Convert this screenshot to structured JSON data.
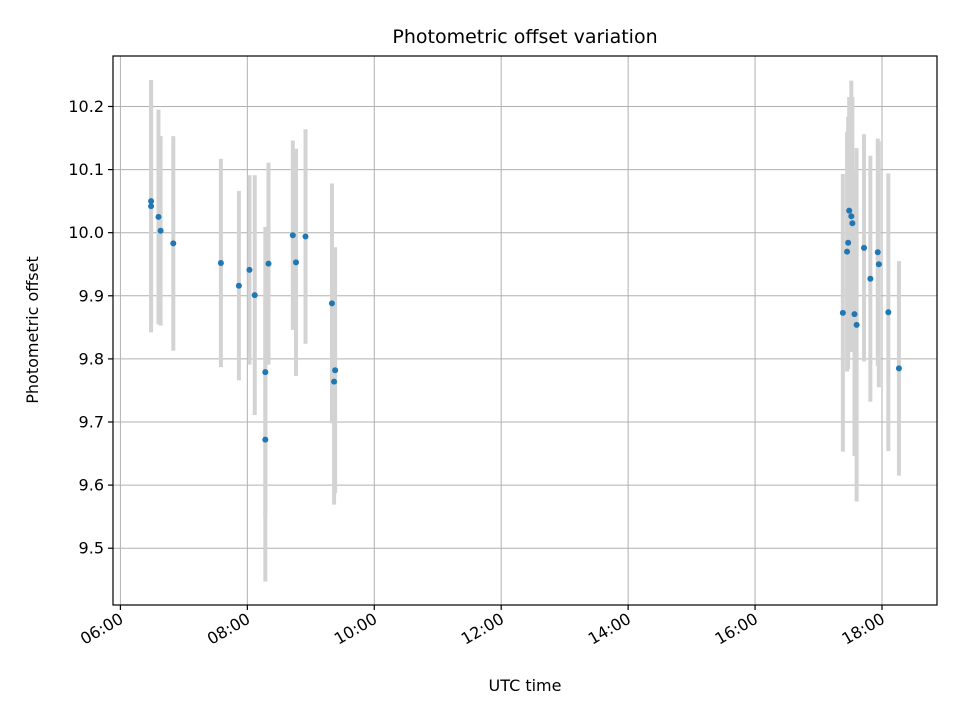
{
  "chart_data": {
    "type": "scatter",
    "title": "Photometric offset variation",
    "xlabel": "UTC time",
    "ylabel": "Photometric offset",
    "x_axis_type": "time",
    "xlim": [
      "05:53",
      "18:52"
    ],
    "ylim": [
      9.41,
      10.28
    ],
    "x_ticks": [
      "06:00",
      "08:00",
      "10:00",
      "12:00",
      "14:00",
      "16:00",
      "18:00"
    ],
    "y_ticks": [
      "9.5",
      "9.6",
      "9.7",
      "9.8",
      "9.9",
      "10.0",
      "10.1",
      "10.2"
    ],
    "grid": true,
    "colors": {
      "point": "#1f77b4",
      "errorbar": "#d3d3d3",
      "grid": "#b0b0b0"
    },
    "series": [
      {
        "points": [
          {
            "x": "06:29",
            "y": 10.05,
            "err": 0.19
          },
          {
            "x": "06:29",
            "y": 10.042,
            "err": 0.2
          },
          {
            "x": "06:36",
            "y": 10.025,
            "err": 0.17
          },
          {
            "x": "06:38",
            "y": 10.003,
            "err": 0.15
          },
          {
            "x": "06:50",
            "y": 9.983,
            "err": 0.17
          },
          {
            "x": "07:35",
            "y": 9.952,
            "err": 0.165
          },
          {
            "x": "07:52",
            "y": 9.916,
            "err": 0.15
          },
          {
            "x": "08:02",
            "y": 9.941,
            "err": 0.15
          },
          {
            "x": "08:07",
            "y": 9.901,
            "err": 0.19
          },
          {
            "x": "08:17",
            "y": 9.779,
            "err": 0.23
          },
          {
            "x": "08:17",
            "y": 9.672,
            "err": 0.225
          },
          {
            "x": "08:20",
            "y": 9.951,
            "err": 0.16
          },
          {
            "x": "08:43",
            "y": 9.996,
            "err": 0.15
          },
          {
            "x": "08:46",
            "y": 9.953,
            "err": 0.18
          },
          {
            "x": "08:55",
            "y": 9.994,
            "err": 0.17
          },
          {
            "x": "09:20",
            "y": 9.888,
            "err": 0.19
          },
          {
            "x": "09:22",
            "y": 9.764,
            "err": 0.195
          },
          {
            "x": "09:23",
            "y": 9.782,
            "err": 0.195
          },
          {
            "x": "17:23",
            "y": 9.873,
            "err": 0.22
          },
          {
            "x": "17:27",
            "y": 9.97,
            "err": 0.19
          },
          {
            "x": "17:28",
            "y": 9.984,
            "err": 0.2
          },
          {
            "x": "17:29",
            "y": 10.035,
            "err": 0.18
          },
          {
            "x": "17:31",
            "y": 10.026,
            "err": 0.215
          },
          {
            "x": "17:32",
            "y": 10.015,
            "err": 0.2
          },
          {
            "x": "17:34",
            "y": 9.871,
            "err": 0.225
          },
          {
            "x": "17:36",
            "y": 9.854,
            "err": 0.28
          },
          {
            "x": "17:43",
            "y": 9.976,
            "err": 0.18
          },
          {
            "x": "17:49",
            "y": 9.927,
            "err": 0.195
          },
          {
            "x": "17:56",
            "y": 9.969,
            "err": 0.18
          },
          {
            "x": "17:57",
            "y": 9.95,
            "err": 0.195
          },
          {
            "x": "18:06",
            "y": 9.874,
            "err": 0.22
          },
          {
            "x": "18:16",
            "y": 9.785,
            "err": 0.17
          }
        ]
      }
    ]
  }
}
